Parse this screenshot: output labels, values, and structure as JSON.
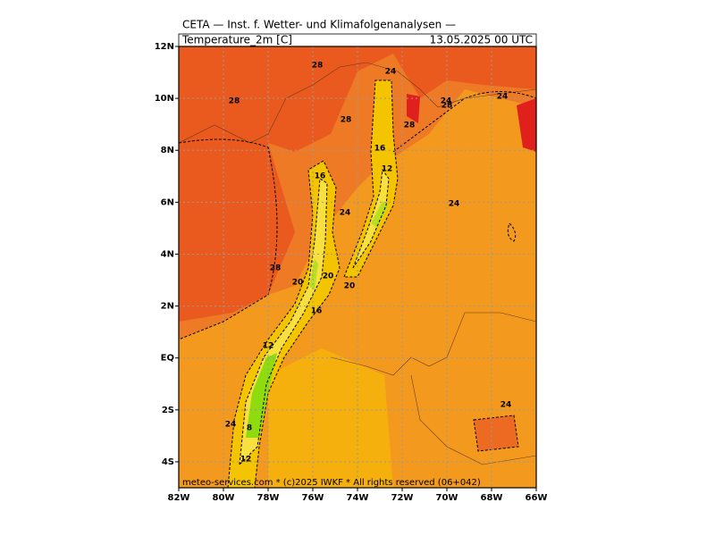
{
  "map": {
    "title": "CETA — Inst. f. Wetter- und Klimafolgenanalysen —",
    "field": "Temperature_2m [C]",
    "valid_time": "13.05.2025 00 UTC",
    "credit": "meteo-services.com * (c)2025 IWKF * All rights reserved (06+042)",
    "xlim": [
      -82,
      -66
    ],
    "ylim": [
      -5,
      12
    ],
    "xticks": [
      {
        "value": -82,
        "label": "82W"
      },
      {
        "value": -80,
        "label": "80W"
      },
      {
        "value": -78,
        "label": "78W"
      },
      {
        "value": -76,
        "label": "76W"
      },
      {
        "value": -74,
        "label": "74W"
      },
      {
        "value": -72,
        "label": "72W"
      },
      {
        "value": -70,
        "label": "70W"
      },
      {
        "value": -68,
        "label": "68W"
      },
      {
        "value": -66,
        "label": "66W"
      }
    ],
    "yticks": [
      {
        "value": 12,
        "label": "12N"
      },
      {
        "value": 10,
        "label": "10N"
      },
      {
        "value": 8,
        "label": "8N"
      },
      {
        "value": 6,
        "label": "6N"
      },
      {
        "value": 4,
        "label": "4N"
      },
      {
        "value": 2,
        "label": "2N"
      },
      {
        "value": 0,
        "label": "EQ"
      },
      {
        "value": -2,
        "label": "2S"
      },
      {
        "value": -4,
        "label": "4S"
      }
    ],
    "contour_labels": [
      "28",
      "24",
      "28",
      "24",
      "24",
      "28",
      "28",
      "28",
      "16",
      "12",
      "16",
      "24",
      "24",
      "28",
      "20",
      "20",
      "20",
      "16",
      "12",
      "24",
      "24",
      "8",
      "12"
    ]
  }
}
